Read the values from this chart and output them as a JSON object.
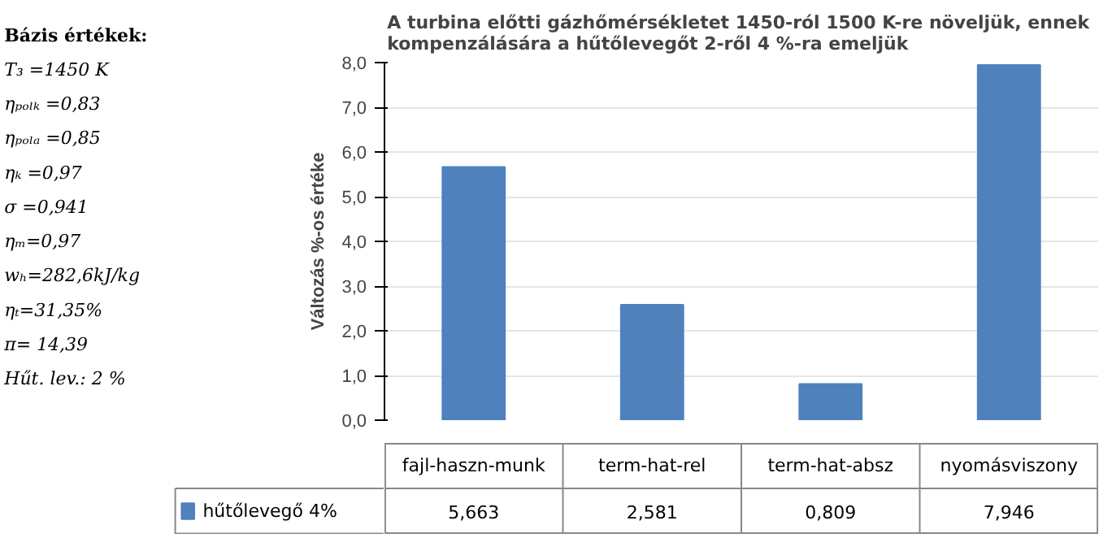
{
  "chart_data": {
    "type": "bar",
    "title": "A turbina  előtti gázhőmérsékletet 1450-ról 1500 K-re növeljük, ennek\nkompenzálására  a hűtőlevegőt 2-ről 4 %-ra emeljük",
    "ylabel": "Változás %-os értéke",
    "categories": [
      "fajl-haszn-munk",
      "term-hat-rel",
      "term-hat-absz",
      "nyomásviszony"
    ],
    "series": [
      {
        "name": "hűtőlevegő 4%",
        "color": "#4f81bd",
        "values": [
          5.663,
          2.581,
          0.809,
          7.946
        ],
        "value_labels": [
          "5,663",
          "2,581",
          "0,809",
          "7,946"
        ]
      }
    ],
    "ylim": [
      0,
      8
    ],
    "yticks": [
      {
        "value": 0,
        "label": "0,0"
      },
      {
        "value": 1,
        "label": "1,0"
      },
      {
        "value": 2,
        "label": "2,0"
      },
      {
        "value": 3,
        "label": "3,0"
      },
      {
        "value": 4,
        "label": "4,0"
      },
      {
        "value": 5,
        "label": "5,0"
      },
      {
        "value": 6,
        "label": "6,0"
      },
      {
        "value": 7,
        "label": "7,0"
      },
      {
        "value": 8,
        "label": "8,0"
      }
    ],
    "grid": "y",
    "annotations": [
      "Bázis értékek:",
      "T₃ =1450 K",
      "ηₚₒₗₖ =0,83",
      "ηₚₒₗₐ =0,85",
      "ηₖ =0,97",
      "σ =0,941",
      "ηₘ=0,97",
      "wₕ=282,6kJ/kg",
      "ηₜ=31,35%",
      "π= 14,39",
      "Hűt. lev.: 2 %"
    ]
  }
}
